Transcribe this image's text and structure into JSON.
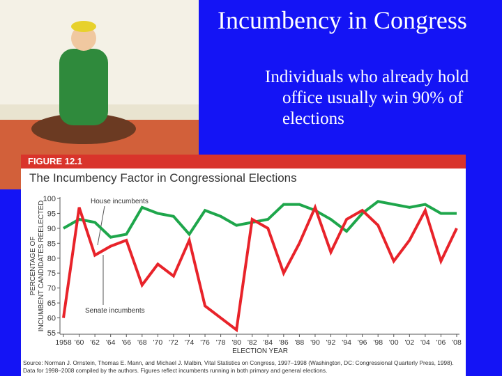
{
  "slide": {
    "title": "Incumbency in Congress",
    "bullet": "Individuals who already hold office usually win 90% of elections"
  },
  "chart_data": {
    "type": "line",
    "figure_label": "FIGURE 12.1",
    "title": "The Incumbency Factor in Congressional Elections",
    "y_label": [
      "PERCENTAGE OF",
      "INCUMBENT CANDIDATES REELECTED"
    ],
    "x_label": "ELECTION YEAR",
    "annotations": [
      "House incumbents",
      "Senate incumbents"
    ],
    "source": [
      "Source: Norman J. Ornstein, Thomas E. Mann, and Michael J. Malbin, Vital Statistics on Congress, 1997–1998 (Washington, DC: Congressional Quarterly Press, 1998).",
      "Data for 1998–2008 compiled by the authors. Figures reflect incumbents running in both primary and general elections."
    ],
    "x": [
      1958,
      1960,
      1962,
      1964,
      1966,
      1968,
      1970,
      1972,
      1974,
      1976,
      1978,
      1980,
      1982,
      1984,
      1986,
      1988,
      1990,
      1992,
      1994,
      1996,
      1998,
      2000,
      2002,
      2004,
      2006,
      2008
    ],
    "series": [
      {
        "name": "House incumbents",
        "color": "#1ea64b",
        "values": [
          90,
          93,
          92,
          87,
          88,
          97,
          95,
          94,
          88,
          96,
          94,
          91,
          92,
          93,
          98,
          98,
          96,
          93,
          89,
          95,
          99,
          98,
          97,
          98,
          95,
          95
        ]
      },
      {
        "name": "Senate incumbents",
        "color": "#e8232a",
        "values": [
          60,
          97,
          81,
          84,
          86,
          71,
          78,
          74,
          86,
          64,
          60,
          56,
          93,
          90,
          75,
          85,
          97,
          82,
          93,
          96,
          91,
          79,
          86,
          96,
          79,
          90
        ]
      }
    ],
    "xlim": [
      1958,
      2008
    ],
    "xticks": [
      {
        "value": 1958,
        "label": "1958"
      },
      {
        "value": 1960,
        "label": "'60"
      },
      {
        "value": 1962,
        "label": "'62"
      },
      {
        "value": 1964,
        "label": "'64"
      },
      {
        "value": 1966,
        "label": "'66"
      },
      {
        "value": 1968,
        "label": "'68"
      },
      {
        "value": 1970,
        "label": "'70"
      },
      {
        "value": 1972,
        "label": "'72"
      },
      {
        "value": 1974,
        "label": "'74"
      },
      {
        "value": 1976,
        "label": "'76"
      },
      {
        "value": 1978,
        "label": "'78"
      },
      {
        "value": 1980,
        "label": "'80"
      },
      {
        "value": 1982,
        "label": "'82"
      },
      {
        "value": 1984,
        "label": "'84"
      },
      {
        "value": 1986,
        "label": "'86"
      },
      {
        "value": 1988,
        "label": "'88"
      },
      {
        "value": 1990,
        "label": "'90"
      },
      {
        "value": 1992,
        "label": "'92"
      },
      {
        "value": 1994,
        "label": "'94"
      },
      {
        "value": 1996,
        "label": "'96"
      },
      {
        "value": 1998,
        "label": "'98"
      },
      {
        "value": 2000,
        "label": "'00"
      },
      {
        "value": 2002,
        "label": "'02"
      },
      {
        "value": 2004,
        "label": "'04"
      },
      {
        "value": 2006,
        "label": "'06"
      },
      {
        "value": 2008,
        "label": "'08"
      }
    ],
    "ylim": [
      55,
      100
    ],
    "yticks": [
      55,
      60,
      65,
      70,
      75,
      80,
      85,
      90,
      95,
      100
    ]
  }
}
